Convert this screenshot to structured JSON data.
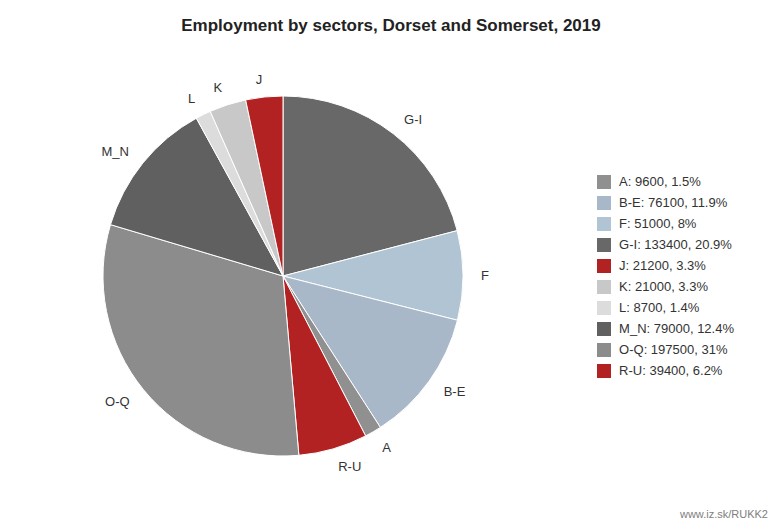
{
  "chart_data": {
    "type": "pie",
    "title": "Employment by sectors, Dorset and Somerset, 2019",
    "categories": [
      "G-I",
      "F",
      "B-E",
      "A",
      "R-U",
      "O-Q",
      "M_N",
      "L",
      "K",
      "J"
    ],
    "values": [
      133400,
      51000,
      76100,
      9600,
      39400,
      197500,
      79000,
      8700,
      21000,
      21200
    ],
    "colors": [
      "#686868",
      "#b0c4d4",
      "#a8b8c8",
      "#909090",
      "#b22222",
      "#8c8c8c",
      "#606060",
      "#dcdcdc",
      "#c8c8c8",
      "#b22222"
    ],
    "legend_entries": [
      {
        "label": "A: 9600, 1.5%",
        "color": "#909090"
      },
      {
        "label": "B-E: 76100, 11.9%",
        "color": "#a8b8c8"
      },
      {
        "label": "F: 51000, 8%",
        "color": "#b0c4d4"
      },
      {
        "label": "G-I: 133400, 20.9%",
        "color": "#686868"
      },
      {
        "label": "J: 21200, 3.3%",
        "color": "#b22222"
      },
      {
        "label": "K: 21000, 3.3%",
        "color": "#c8c8c8"
      },
      {
        "label": "L: 8700, 1.4%",
        "color": "#dcdcdc"
      },
      {
        "label": "M_N: 79000, 12.4%",
        "color": "#606060"
      },
      {
        "label": "O-Q: 197500, 31%",
        "color": "#8c8c8c"
      },
      {
        "label": "R-U: 39400, 6.2%",
        "color": "#b22222"
      }
    ],
    "annotations": [
      "www.iz.sk/RUKK2"
    ]
  }
}
